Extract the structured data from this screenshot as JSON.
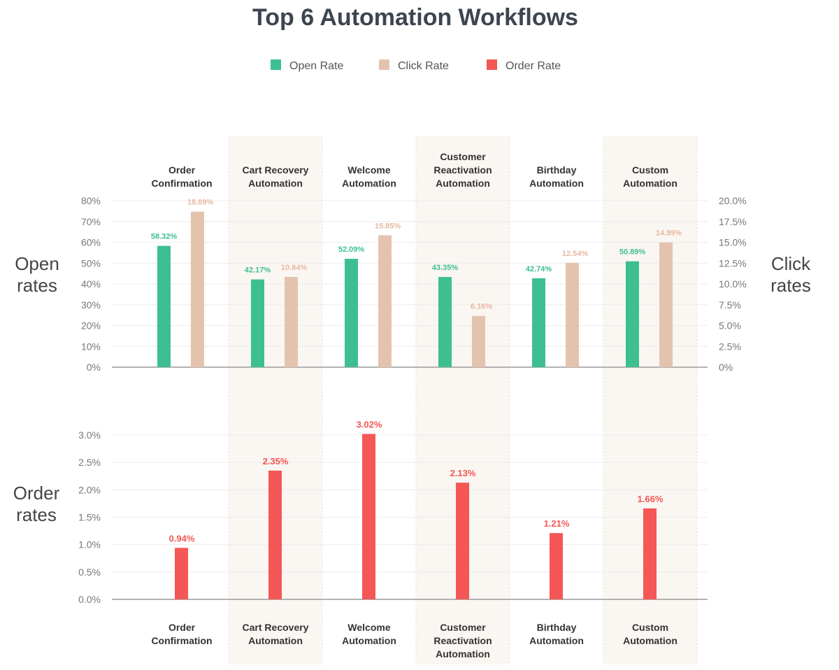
{
  "title": "Top 6 Automation Workflows",
  "legend": [
    {
      "label": "Open Rate",
      "color": "#3dbf92"
    },
    {
      "label": "Click Rate",
      "color": "#e4c3ae"
    },
    {
      "label": "Order Rate",
      "color": "#f55656"
    }
  ],
  "colors": {
    "open": "#3dbf92",
    "click": "#e4c3ae",
    "order": "#f55656",
    "band": "#faf6f2",
    "click_label": "#e6b9a0"
  },
  "chart_data": [
    {
      "type": "bar",
      "categories": [
        [
          "Order",
          "Confirmation"
        ],
        [
          "Cart Recovery",
          "Automation"
        ],
        [
          "Welcome",
          "Automation"
        ],
        [
          "Customer",
          "Reactivation",
          "Automation"
        ],
        [
          "Birthday",
          "Automation"
        ],
        [
          "Custom",
          "Automation"
        ]
      ],
      "ylabel_left": [
        "Open",
        "rates"
      ],
      "ylabel_right": [
        "Click",
        "rates"
      ],
      "ylim_left": [
        0,
        80
      ],
      "ylim_right": [
        0,
        20
      ],
      "yticks_left": [
        "0%",
        "10%",
        "20%",
        "30%",
        "40%",
        "50%",
        "60%",
        "70%",
        "80%"
      ],
      "yticks_right": [
        "0%",
        "2.5%",
        "5.0%",
        "7.5%",
        "10.0%",
        "12.5%",
        "15.0%",
        "17.5%",
        "20.0%"
      ],
      "series": [
        {
          "name": "Open Rate",
          "axis": "left",
          "values": [
            58.32,
            42.17,
            52.09,
            43.35,
            42.74,
            50.89
          ],
          "labels": [
            "58.32%",
            "42.17%",
            "52.09%",
            "43.35%",
            "42.74%",
            "50.89%"
          ]
        },
        {
          "name": "Click Rate",
          "axis": "right",
          "values": [
            18.69,
            10.84,
            15.85,
            6.16,
            12.54,
            14.99
          ],
          "labels": [
            "18.69%",
            "10.84%",
            "15.85%",
            "6.16%",
            "12.54%",
            "14.99%"
          ]
        }
      ]
    },
    {
      "type": "bar",
      "categories": [
        [
          "Order",
          "Confirmation"
        ],
        [
          "Cart Recovery",
          "Automation"
        ],
        [
          "Welcome",
          "Automation"
        ],
        [
          "Customer",
          "Reactivation",
          "Automation"
        ],
        [
          "Birthday",
          "Automation"
        ],
        [
          "Custom",
          "Automation"
        ]
      ],
      "ylabel": [
        "Order",
        "rates"
      ],
      "ylim": [
        0,
        3.0
      ],
      "yticks": [
        "0.0%",
        "0.5%",
        "1.0%",
        "1.5%",
        "2.0%",
        "2.5%",
        "3.0%"
      ],
      "series": [
        {
          "name": "Order Rate",
          "values": [
            0.94,
            2.35,
            3.02,
            2.13,
            1.21,
            1.66
          ],
          "labels": [
            "0.94%",
            "2.35%",
            "3.02%",
            "2.13%",
            "1.21%",
            "1.66%"
          ]
        }
      ]
    }
  ]
}
